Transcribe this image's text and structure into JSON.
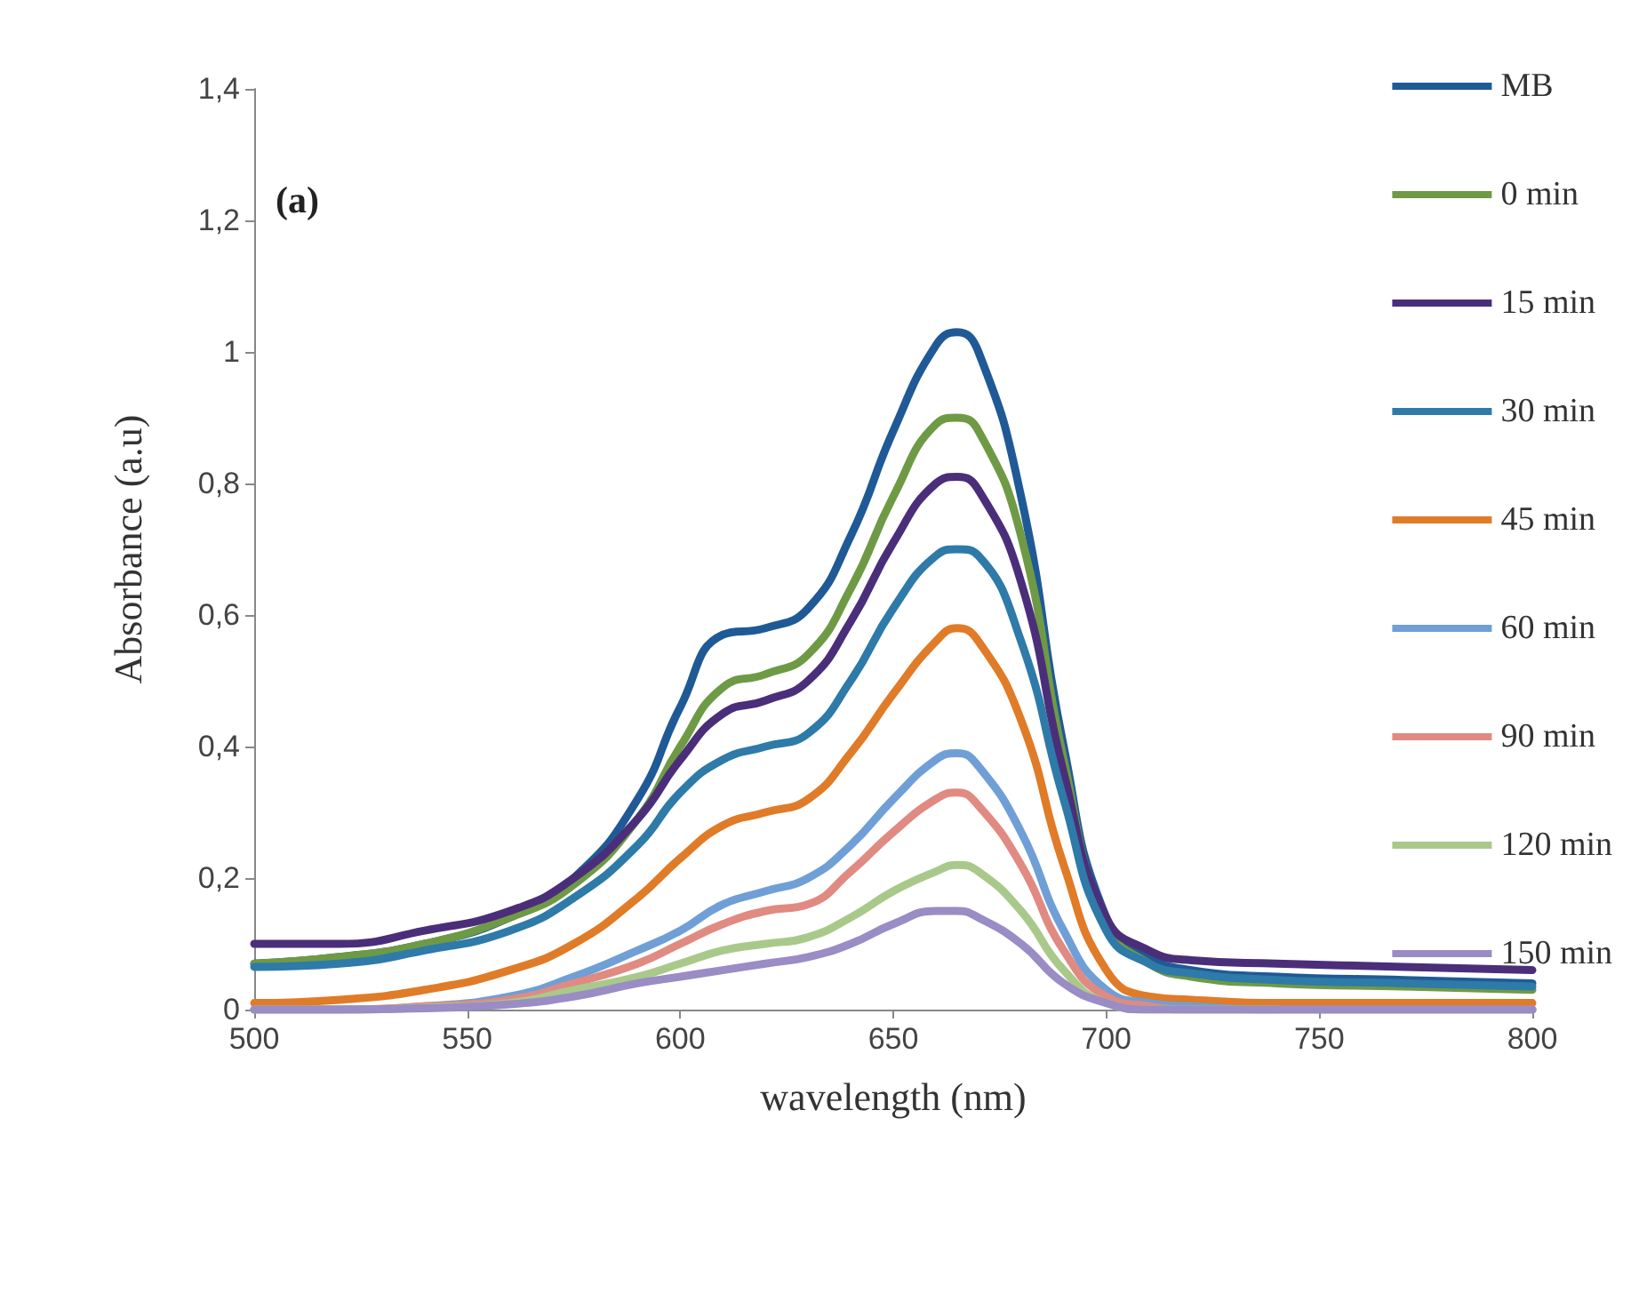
{
  "chart_data": {
    "type": "line",
    "xlabel": "wavelength (nm)",
    "ylabel": "Absorbance (a.u)",
    "annotations": [
      "(a)"
    ],
    "x": [
      500,
      520,
      540,
      560,
      575,
      590,
      600,
      610,
      620,
      630,
      640,
      650,
      660,
      665,
      670,
      680,
      690,
      700,
      710,
      720,
      740,
      770,
      800
    ],
    "series": [
      {
        "name": "MB",
        "color": "#1f5a96",
        "values": [
          0.07,
          0.08,
          0.1,
          0.14,
          0.2,
          0.32,
          0.46,
          0.57,
          0.58,
          0.61,
          0.72,
          0.88,
          1.01,
          1.03,
          1.0,
          0.78,
          0.4,
          0.14,
          0.08,
          0.06,
          0.05,
          0.045,
          0.04
        ]
      },
      {
        "name": "0 min",
        "color": "#6f9a45",
        "values": [
          0.07,
          0.08,
          0.1,
          0.14,
          0.19,
          0.29,
          0.4,
          0.49,
          0.51,
          0.54,
          0.64,
          0.78,
          0.89,
          0.9,
          0.88,
          0.72,
          0.38,
          0.13,
          0.07,
          0.05,
          0.04,
          0.035,
          0.03
        ]
      },
      {
        "name": "15 min",
        "color": "#4b2e7a",
        "values": [
          0.1,
          0.1,
          0.12,
          0.15,
          0.2,
          0.29,
          0.38,
          0.45,
          0.47,
          0.5,
          0.59,
          0.71,
          0.8,
          0.81,
          0.79,
          0.65,
          0.36,
          0.14,
          0.09,
          0.075,
          0.07,
          0.065,
          0.06
        ]
      },
      {
        "name": "30 min",
        "color": "#2e7aa8",
        "values": [
          0.065,
          0.07,
          0.09,
          0.12,
          0.17,
          0.25,
          0.33,
          0.38,
          0.4,
          0.42,
          0.5,
          0.61,
          0.69,
          0.7,
          0.69,
          0.56,
          0.32,
          0.12,
          0.07,
          0.055,
          0.045,
          0.04,
          0.035
        ]
      },
      {
        "name": "45 min",
        "color": "#e07b28",
        "values": [
          0.01,
          0.015,
          0.03,
          0.06,
          0.1,
          0.17,
          0.23,
          0.28,
          0.3,
          0.32,
          0.39,
          0.48,
          0.56,
          0.58,
          0.56,
          0.44,
          0.22,
          0.06,
          0.02,
          0.015,
          0.01,
          0.01,
          0.01
        ]
      },
      {
        "name": "60 min",
        "color": "#6f9fd6",
        "values": [
          0,
          0,
          0.005,
          0.02,
          0.05,
          0.09,
          0.12,
          0.16,
          0.18,
          0.2,
          0.25,
          0.32,
          0.38,
          0.39,
          0.37,
          0.27,
          0.12,
          0.03,
          0.01,
          0.005,
          0,
          0,
          0
        ]
      },
      {
        "name": "90 min",
        "color": "#e08a82",
        "values": [
          0,
          0,
          0.005,
          0.015,
          0.04,
          0.07,
          0.1,
          0.13,
          0.15,
          0.16,
          0.21,
          0.27,
          0.32,
          0.33,
          0.31,
          0.22,
          0.09,
          0.02,
          0.005,
          0,
          0,
          0,
          0
        ]
      },
      {
        "name": "120 min",
        "color": "#a9c98a",
        "values": [
          0,
          0,
          0.003,
          0.01,
          0.03,
          0.05,
          0.07,
          0.09,
          0.1,
          0.11,
          0.14,
          0.18,
          0.21,
          0.22,
          0.21,
          0.15,
          0.06,
          0.01,
          0,
          0,
          0,
          null,
          null
        ]
      },
      {
        "name": "150 min",
        "color": "#9a8cc4",
        "values": [
          0,
          0,
          0.002,
          0.008,
          0.02,
          0.04,
          0.05,
          0.06,
          0.07,
          0.08,
          0.1,
          0.13,
          0.15,
          0.15,
          0.14,
          0.1,
          0.04,
          0.01,
          0,
          0,
          0,
          0,
          0
        ]
      }
    ],
    "xlim": [
      500,
      800
    ],
    "xticks": [
      500,
      550,
      600,
      650,
      700,
      750,
      800
    ],
    "ylim": [
      0,
      1.4
    ],
    "yticks": [
      0,
      {
        "value": 0.2,
        "label": "0,2"
      },
      {
        "value": 0.4,
        "label": "0,4"
      },
      {
        "value": 0.6,
        "label": "0,6"
      },
      {
        "value": 0.8,
        "label": "0,8"
      },
      1,
      {
        "value": 1.2,
        "label": "1,2"
      },
      {
        "value": 1.4,
        "label": "1,4"
      }
    ],
    "grid": false,
    "legend": "top right",
    "marker": "none",
    "line_style": "solid"
  }
}
